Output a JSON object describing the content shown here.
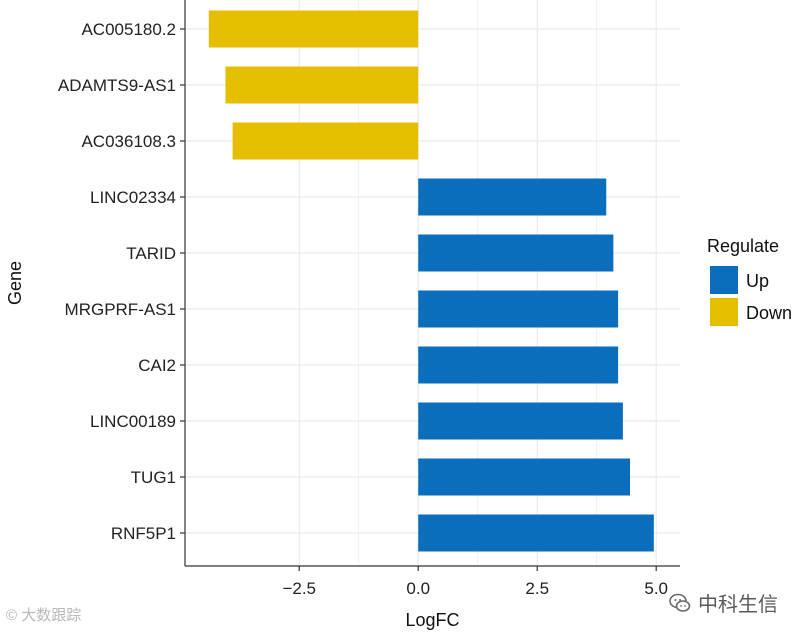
{
  "chart_data": {
    "type": "bar",
    "orientation": "horizontal",
    "title": "",
    "xlabel": "LogFC",
    "ylabel": "Gene",
    "xlim": [
      -4.9,
      5.5
    ],
    "xticks": [
      -2.5,
      0.0,
      2.5,
      5.0
    ],
    "xtick_labels": [
      "−2.5",
      "0.0",
      "2.5",
      "5.0"
    ],
    "grid": true,
    "categories": [
      "AC005180.2",
      "ADAMTS9-AS1",
      "AC036108.3",
      "LINC02334",
      "TARID",
      "MRGPRF-AS1",
      "CAI2",
      "LINC00189",
      "TUG1",
      "RNF5P1"
    ],
    "values": [
      -4.4,
      -4.05,
      -3.9,
      3.95,
      4.1,
      4.2,
      4.2,
      4.3,
      4.45,
      4.95
    ],
    "groups": [
      "Down",
      "Down",
      "Down",
      "Up",
      "Up",
      "Up",
      "Up",
      "Up",
      "Up",
      "Up"
    ],
    "legend": {
      "title": "Regulate",
      "placement": "right",
      "entries": [
        {
          "label": "Up",
          "color": "#0A6EBD"
        },
        {
          "label": "Down",
          "color": "#E6BE00"
        }
      ]
    }
  },
  "watermarks": {
    "left": "© 大数跟踪",
    "right": "中科生信",
    "right_icon": "wechat-icon"
  },
  "colors": {
    "up": "#0A6EBD",
    "down": "#E6BE00",
    "grid": "#EBEBEB",
    "axis": "#333333"
  }
}
